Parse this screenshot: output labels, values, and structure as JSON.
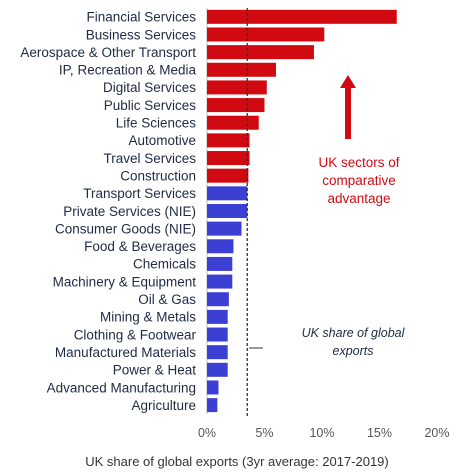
{
  "chart_data": {
    "type": "bar",
    "orientation": "horizontal",
    "categories": [
      "Financial Services",
      "Business Services",
      "Aerospace & Other Transport",
      "IP, Recreation & Media",
      "Digital Services",
      "Public Services",
      "Life Sciences",
      "Automotive",
      "Travel Services",
      "Construction",
      "Transport Services",
      "Private Services (NIE)",
      "Consumer Goods (NIE)",
      "Food & Beverages",
      "Chemicals",
      "Machinery & Equipment",
      "Oil & Gas",
      "Mining & Metals",
      "Clothing & Footwear",
      "Manufactured Materials",
      "Power & Heat",
      "Advanced Manufacturing",
      "Agriculture"
    ],
    "values": [
      16.5,
      10.2,
      9.3,
      6.0,
      5.2,
      5.0,
      4.5,
      3.7,
      3.7,
      3.6,
      3.5,
      3.5,
      3.0,
      2.3,
      2.2,
      2.2,
      1.9,
      1.8,
      1.8,
      1.8,
      1.8,
      1.0,
      0.9
    ],
    "bar_colors": [
      "#d10a11",
      "#d10a11",
      "#d10a11",
      "#d10a11",
      "#d10a11",
      "#d10a11",
      "#d10a11",
      "#d10a11",
      "#d10a11",
      "#d10a11",
      "#3c3fd4",
      "#3c3fd4",
      "#3c3fd4",
      "#3c3fd4",
      "#3c3fd4",
      "#3c3fd4",
      "#3c3fd4",
      "#3c3fd4",
      "#3c3fd4",
      "#3c3fd4",
      "#3c3fd4",
      "#3c3fd4",
      "#3c3fd4"
    ],
    "xlim": [
      0,
      20
    ],
    "xticks": [
      0,
      5,
      10,
      15,
      20
    ],
    "xtick_labels": [
      "0%",
      "5%",
      "10%",
      "15%",
      "20%"
    ],
    "xlabel": "UK share of global exports (3yr average: 2017-2019)",
    "reference_line": {
      "value": 3.5,
      "style": "dashed"
    },
    "annotations": {
      "advantage": [
        "UK sectors of",
        "comparative",
        "advantage"
      ],
      "share": [
        "UK share of global",
        "exports"
      ]
    },
    "colors": {
      "advantage": "#d10a11",
      "other": "#3c3fd4",
      "text": "#1f2a44",
      "reference": "#333333"
    },
    "grid": false
  }
}
